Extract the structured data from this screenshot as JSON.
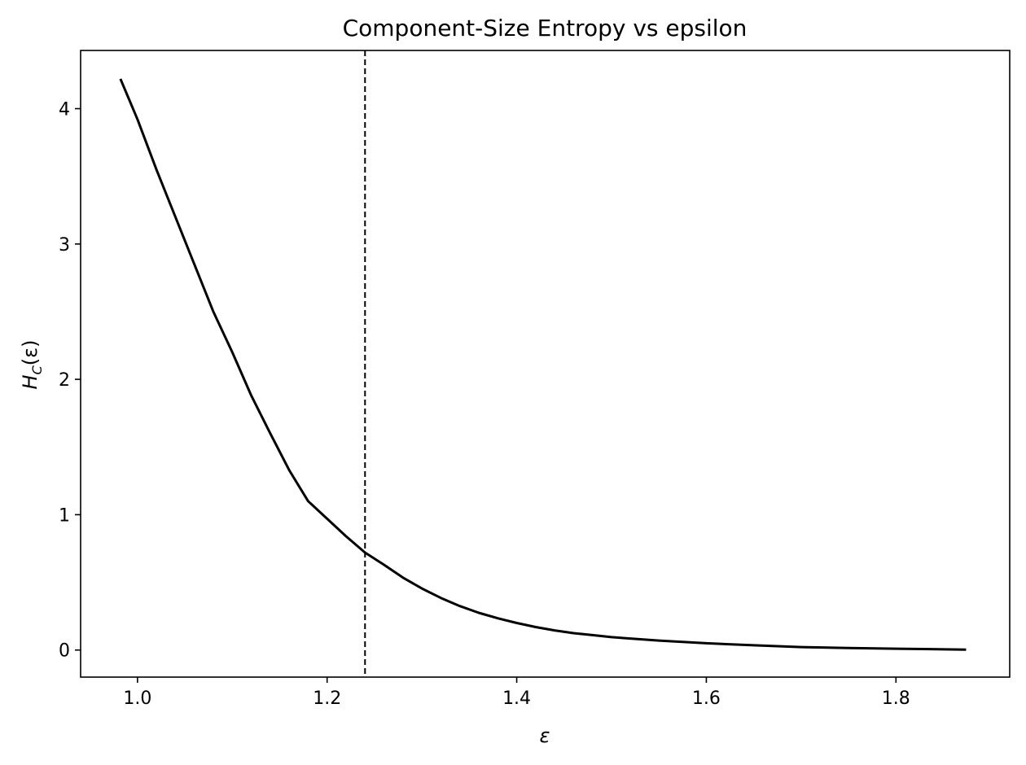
{
  "chart_data": {
    "type": "line",
    "title": "Component-Size Entropy vs epsilon",
    "xlabel": "ε",
    "ylabel": {
      "main": "H",
      "sub": "C",
      "rest": "(ε)"
    },
    "xlim": [
      0.94,
      1.92
    ],
    "ylim": [
      -0.2,
      4.43
    ],
    "xticks": [
      {
        "value": 1.0,
        "label": "1.0"
      },
      {
        "value": 1.2,
        "label": "1.2"
      },
      {
        "value": 1.4,
        "label": "1.4"
      },
      {
        "value": 1.6,
        "label": "1.6"
      },
      {
        "value": 1.8,
        "label": "1.8"
      }
    ],
    "yticks": [
      {
        "value": 0,
        "label": "0"
      },
      {
        "value": 1,
        "label": "1"
      },
      {
        "value": 2,
        "label": "2"
      },
      {
        "value": 3,
        "label": "3"
      },
      {
        "value": 4,
        "label": "4"
      }
    ],
    "grid": false,
    "reference_line": {
      "orientation": "vertical",
      "x": 1.24,
      "style": "dashed",
      "color": "#000000"
    },
    "series": [
      {
        "color": "#000000",
        "x": [
          0.982,
          1.0,
          1.02,
          1.04,
          1.06,
          1.08,
          1.1,
          1.12,
          1.14,
          1.16,
          1.18,
          1.2,
          1.22,
          1.24,
          1.26,
          1.28,
          1.3,
          1.32,
          1.34,
          1.36,
          1.38,
          1.4,
          1.42,
          1.44,
          1.46,
          1.48,
          1.5,
          1.55,
          1.6,
          1.65,
          1.7,
          1.75,
          1.8,
          1.874
        ],
        "y": [
          4.22,
          3.92,
          3.55,
          3.2,
          2.85,
          2.5,
          2.2,
          1.88,
          1.6,
          1.33,
          1.1,
          0.97,
          0.84,
          0.72,
          0.63,
          0.535,
          0.455,
          0.385,
          0.325,
          0.275,
          0.235,
          0.2,
          0.17,
          0.145,
          0.125,
          0.11,
          0.095,
          0.07,
          0.05,
          0.035,
          0.022,
          0.015,
          0.01,
          0.003
        ]
      }
    ]
  }
}
